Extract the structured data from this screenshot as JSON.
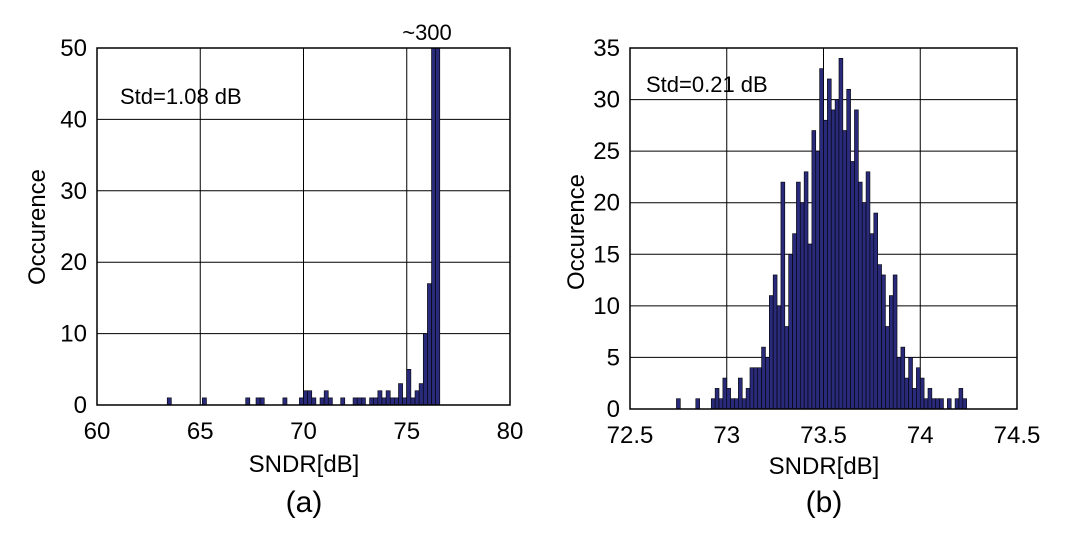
{
  "chart_data": [
    {
      "type": "bar",
      "panel_label": "(a)",
      "xlabel": "SNDR[dB]",
      "ylabel": "Occurence",
      "xlim": [
        60,
        80
      ],
      "ylim": [
        0,
        50
      ],
      "xticks": [
        "60",
        "65",
        "70",
        "75",
        "80"
      ],
      "yticks": [
        "0",
        "10",
        "20",
        "30",
        "40",
        "50"
      ],
      "grid": true,
      "annotations": [
        "Std=1.08 dB",
        "~300"
      ],
      "color": "#2a2a7a",
      "bin_width": 0.2,
      "bins": [
        {
          "x": 63.5,
          "y": 1
        },
        {
          "x": 65.2,
          "y": 1
        },
        {
          "x": 67.3,
          "y": 1
        },
        {
          "x": 67.8,
          "y": 1
        },
        {
          "x": 68.0,
          "y": 1
        },
        {
          "x": 69.1,
          "y": 1
        },
        {
          "x": 69.9,
          "y": 1
        },
        {
          "x": 70.1,
          "y": 2
        },
        {
          "x": 70.3,
          "y": 2
        },
        {
          "x": 70.5,
          "y": 1
        },
        {
          "x": 70.9,
          "y": 1
        },
        {
          "x": 71.1,
          "y": 2
        },
        {
          "x": 71.3,
          "y": 1
        },
        {
          "x": 71.9,
          "y": 1
        },
        {
          "x": 72.5,
          "y": 1
        },
        {
          "x": 72.7,
          "y": 1
        },
        {
          "x": 72.9,
          "y": 1
        },
        {
          "x": 73.3,
          "y": 1
        },
        {
          "x": 73.5,
          "y": 1
        },
        {
          "x": 73.7,
          "y": 2
        },
        {
          "x": 73.9,
          "y": 1
        },
        {
          "x": 74.1,
          "y": 2
        },
        {
          "x": 74.3,
          "y": 1
        },
        {
          "x": 74.5,
          "y": 1
        },
        {
          "x": 74.7,
          "y": 3
        },
        {
          "x": 74.9,
          "y": 1
        },
        {
          "x": 75.1,
          "y": 5
        },
        {
          "x": 75.3,
          "y": 1
        },
        {
          "x": 75.5,
          "y": 2
        },
        {
          "x": 75.7,
          "y": 3
        },
        {
          "x": 75.9,
          "y": 10
        },
        {
          "x": 76.1,
          "y": 17
        },
        {
          "x": 76.3,
          "y": 50
        },
        {
          "x": 76.5,
          "y": 50
        }
      ]
    },
    {
      "type": "bar",
      "panel_label": "(b)",
      "xlabel": "SNDR[dB]",
      "ylabel": "Occurence",
      "xlim": [
        72.5,
        74.5
      ],
      "ylim": [
        0,
        35
      ],
      "xticks": [
        "72.5",
        "73",
        "73.5",
        "74",
        "74.5"
      ],
      "yticks": [
        "0",
        "5",
        "10",
        "15",
        "20",
        "25",
        "30",
        "35"
      ],
      "grid": true,
      "annotations": [
        "Std=0.21 dB"
      ],
      "color": "#2a2a7a",
      "bin_width": 0.02,
      "bins": [
        {
          "x": 72.75,
          "y": 1
        },
        {
          "x": 72.85,
          "y": 1
        },
        {
          "x": 72.93,
          "y": 1
        },
        {
          "x": 72.95,
          "y": 2
        },
        {
          "x": 72.97,
          "y": 1
        },
        {
          "x": 72.99,
          "y": 3
        },
        {
          "x": 73.01,
          "y": 2
        },
        {
          "x": 73.03,
          "y": 1
        },
        {
          "x": 73.05,
          "y": 1
        },
        {
          "x": 73.07,
          "y": 3
        },
        {
          "x": 73.09,
          "y": 1
        },
        {
          "x": 73.11,
          "y": 2
        },
        {
          "x": 73.13,
          "y": 4
        },
        {
          "x": 73.15,
          "y": 4
        },
        {
          "x": 73.17,
          "y": 4
        },
        {
          "x": 73.19,
          "y": 6
        },
        {
          "x": 73.21,
          "y": 5
        },
        {
          "x": 73.23,
          "y": 11
        },
        {
          "x": 73.25,
          "y": 13
        },
        {
          "x": 73.27,
          "y": 10
        },
        {
          "x": 73.29,
          "y": 22
        },
        {
          "x": 73.31,
          "y": 8
        },
        {
          "x": 73.33,
          "y": 15
        },
        {
          "x": 73.35,
          "y": 17
        },
        {
          "x": 73.37,
          "y": 22
        },
        {
          "x": 73.39,
          "y": 20
        },
        {
          "x": 73.41,
          "y": 23
        },
        {
          "x": 73.43,
          "y": 16
        },
        {
          "x": 73.45,
          "y": 27
        },
        {
          "x": 73.47,
          "y": 25
        },
        {
          "x": 73.49,
          "y": 33
        },
        {
          "x": 73.51,
          "y": 28
        },
        {
          "x": 73.53,
          "y": 32
        },
        {
          "x": 73.55,
          "y": 29
        },
        {
          "x": 73.57,
          "y": 30
        },
        {
          "x": 73.59,
          "y": 34
        },
        {
          "x": 73.61,
          "y": 27
        },
        {
          "x": 73.63,
          "y": 31
        },
        {
          "x": 73.65,
          "y": 24
        },
        {
          "x": 73.67,
          "y": 29
        },
        {
          "x": 73.69,
          "y": 22
        },
        {
          "x": 73.71,
          "y": 20
        },
        {
          "x": 73.73,
          "y": 23
        },
        {
          "x": 73.75,
          "y": 17
        },
        {
          "x": 73.77,
          "y": 19
        },
        {
          "x": 73.79,
          "y": 14
        },
        {
          "x": 73.81,
          "y": 13
        },
        {
          "x": 73.83,
          "y": 8
        },
        {
          "x": 73.85,
          "y": 11
        },
        {
          "x": 73.87,
          "y": 13
        },
        {
          "x": 73.89,
          "y": 5
        },
        {
          "x": 73.91,
          "y": 6
        },
        {
          "x": 73.93,
          "y": 3
        },
        {
          "x": 73.95,
          "y": 5
        },
        {
          "x": 73.97,
          "y": 2
        },
        {
          "x": 73.99,
          "y": 4
        },
        {
          "x": 74.01,
          "y": 3
        },
        {
          "x": 74.03,
          "y": 1
        },
        {
          "x": 74.05,
          "y": 2
        },
        {
          "x": 74.07,
          "y": 1
        },
        {
          "x": 74.09,
          "y": 1
        },
        {
          "x": 74.11,
          "y": 1
        },
        {
          "x": 74.15,
          "y": 1
        },
        {
          "x": 74.19,
          "y": 1
        },
        {
          "x": 74.21,
          "y": 2
        },
        {
          "x": 74.23,
          "y": 1
        }
      ]
    }
  ]
}
